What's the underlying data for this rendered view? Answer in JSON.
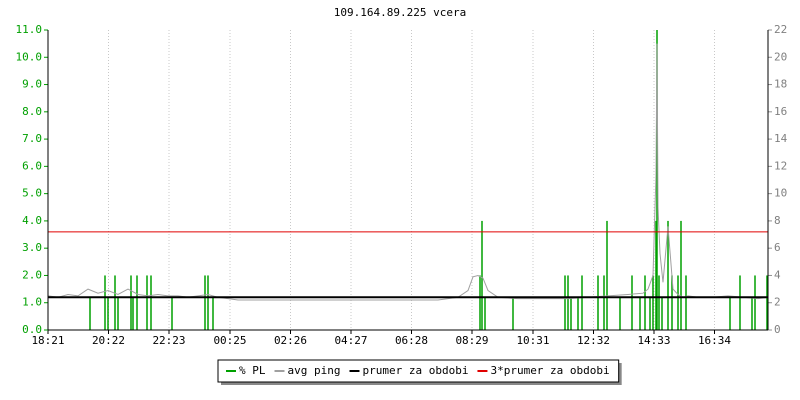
{
  "chart_data": {
    "type": "line",
    "title": "109.164.89.225 vcera",
    "xlim": [
      0,
      1440
    ],
    "xticks": [
      {
        "value": 0,
        "label": "18:21"
      },
      {
        "value": 121,
        "label": "20:22"
      },
      {
        "value": 242,
        "label": "22:23"
      },
      {
        "value": 364,
        "label": "00:25"
      },
      {
        "value": 485,
        "label": "02:26"
      },
      {
        "value": 606,
        "label": "04:27"
      },
      {
        "value": 727,
        "label": "06:28"
      },
      {
        "value": 848,
        "label": "08:29"
      },
      {
        "value": 970,
        "label": "10:31"
      },
      {
        "value": 1091,
        "label": "12:32"
      },
      {
        "value": 1212,
        "label": "14:33"
      },
      {
        "value": 1333,
        "label": "16:34"
      }
    ],
    "ylim": [
      0,
      11
    ],
    "yticks": [
      {
        "value": 0,
        "label": "0.0"
      },
      {
        "value": 1,
        "label": "1.0"
      },
      {
        "value": 2,
        "label": "2.0"
      },
      {
        "value": 3,
        "label": "3.0"
      },
      {
        "value": 4,
        "label": "4.0"
      },
      {
        "value": 5,
        "label": "5.0"
      },
      {
        "value": 6,
        "label": "6.0"
      },
      {
        "value": 7,
        "label": "7.0"
      },
      {
        "value": 8,
        "label": "8.0"
      },
      {
        "value": 9,
        "label": "9.0"
      },
      {
        "value": 10,
        "label": "10.0"
      },
      {
        "value": 11,
        "label": "11.0"
      }
    ],
    "y2lim": [
      0,
      22
    ],
    "y2ticks": [
      0,
      2,
      4,
      6,
      8,
      10,
      12,
      14,
      16,
      18,
      20,
      22
    ],
    "grid": true,
    "series": [
      {
        "name": "% PL",
        "type": "spike",
        "color": "#00a000",
        "x": [
          84,
          114,
          120,
          134,
          140,
          166,
          170,
          178,
          198,
          206,
          248,
          314,
          320,
          330,
          864,
          868,
          874,
          930,
          1034,
          1040,
          1046,
          1060,
          1068,
          1100,
          1112,
          1118,
          1144,
          1168,
          1184,
          1194,
          1204,
          1210,
          1216,
          1218,
          1222,
          1228,
          1240,
          1248,
          1260,
          1266,
          1276,
          1364,
          1384,
          1408,
          1414,
          1438
        ],
        "values": [
          1.2,
          2,
          1.2,
          2,
          1.2,
          2,
          1.2,
          2,
          2,
          2,
          1.2,
          2,
          2,
          1.2,
          2,
          4,
          1.2,
          1.2,
          2,
          2,
          1.2,
          1.2,
          2,
          2,
          2,
          4,
          1.2,
          2,
          1.2,
          2,
          1.2,
          2,
          4,
          11,
          2,
          1.2,
          4,
          2,
          2,
          4,
          2,
          1.2,
          2,
          1.2,
          2,
          2
        ]
      },
      {
        "name": "avg ping",
        "type": "line",
        "color": "#a0a0a0",
        "axis": "y2",
        "x": [
          0,
          20,
          40,
          60,
          80,
          100,
          120,
          140,
          160,
          180,
          200,
          220,
          240,
          260,
          280,
          300,
          320,
          340,
          360,
          380,
          420,
          480,
          540,
          600,
          660,
          720,
          780,
          820,
          840,
          850,
          860,
          870,
          880,
          900,
          940,
          1000,
          1040,
          1080,
          1120,
          1160,
          1190,
          1200,
          1210,
          1216,
          1218,
          1220,
          1224,
          1230,
          1240,
          1250,
          1260,
          1270,
          1280,
          1300,
          1330,
          1360,
          1390,
          1420,
          1440
        ],
        "values": [
          2.5,
          2.4,
          2.6,
          2.5,
          3.0,
          2.7,
          2.9,
          2.6,
          3.0,
          2.6,
          2.5,
          2.6,
          2.5,
          2.5,
          2.4,
          2.5,
          2.6,
          2.4,
          2.3,
          2.2,
          2.2,
          2.2,
          2.2,
          2.2,
          2.2,
          2.2,
          2.2,
          2.4,
          2.9,
          3.9,
          4.0,
          3.8,
          2.9,
          2.4,
          2.3,
          2.3,
          2.3,
          2.4,
          2.5,
          2.6,
          2.7,
          3.0,
          4.0,
          11.4,
          21,
          9.0,
          5.6,
          3.5,
          7.6,
          3.0,
          2.6,
          2.4,
          2.5,
          2.4,
          2.4,
          2.5,
          2.4,
          2.3,
          2.4
        ]
      },
      {
        "name": "prumer za obdobi",
        "type": "hline",
        "color": "#000000",
        "values": [
          1.2
        ]
      },
      {
        "name": "3*prumer za obdobi",
        "type": "hline",
        "color": "#e00000",
        "values": [
          3.6
        ]
      }
    ]
  }
}
